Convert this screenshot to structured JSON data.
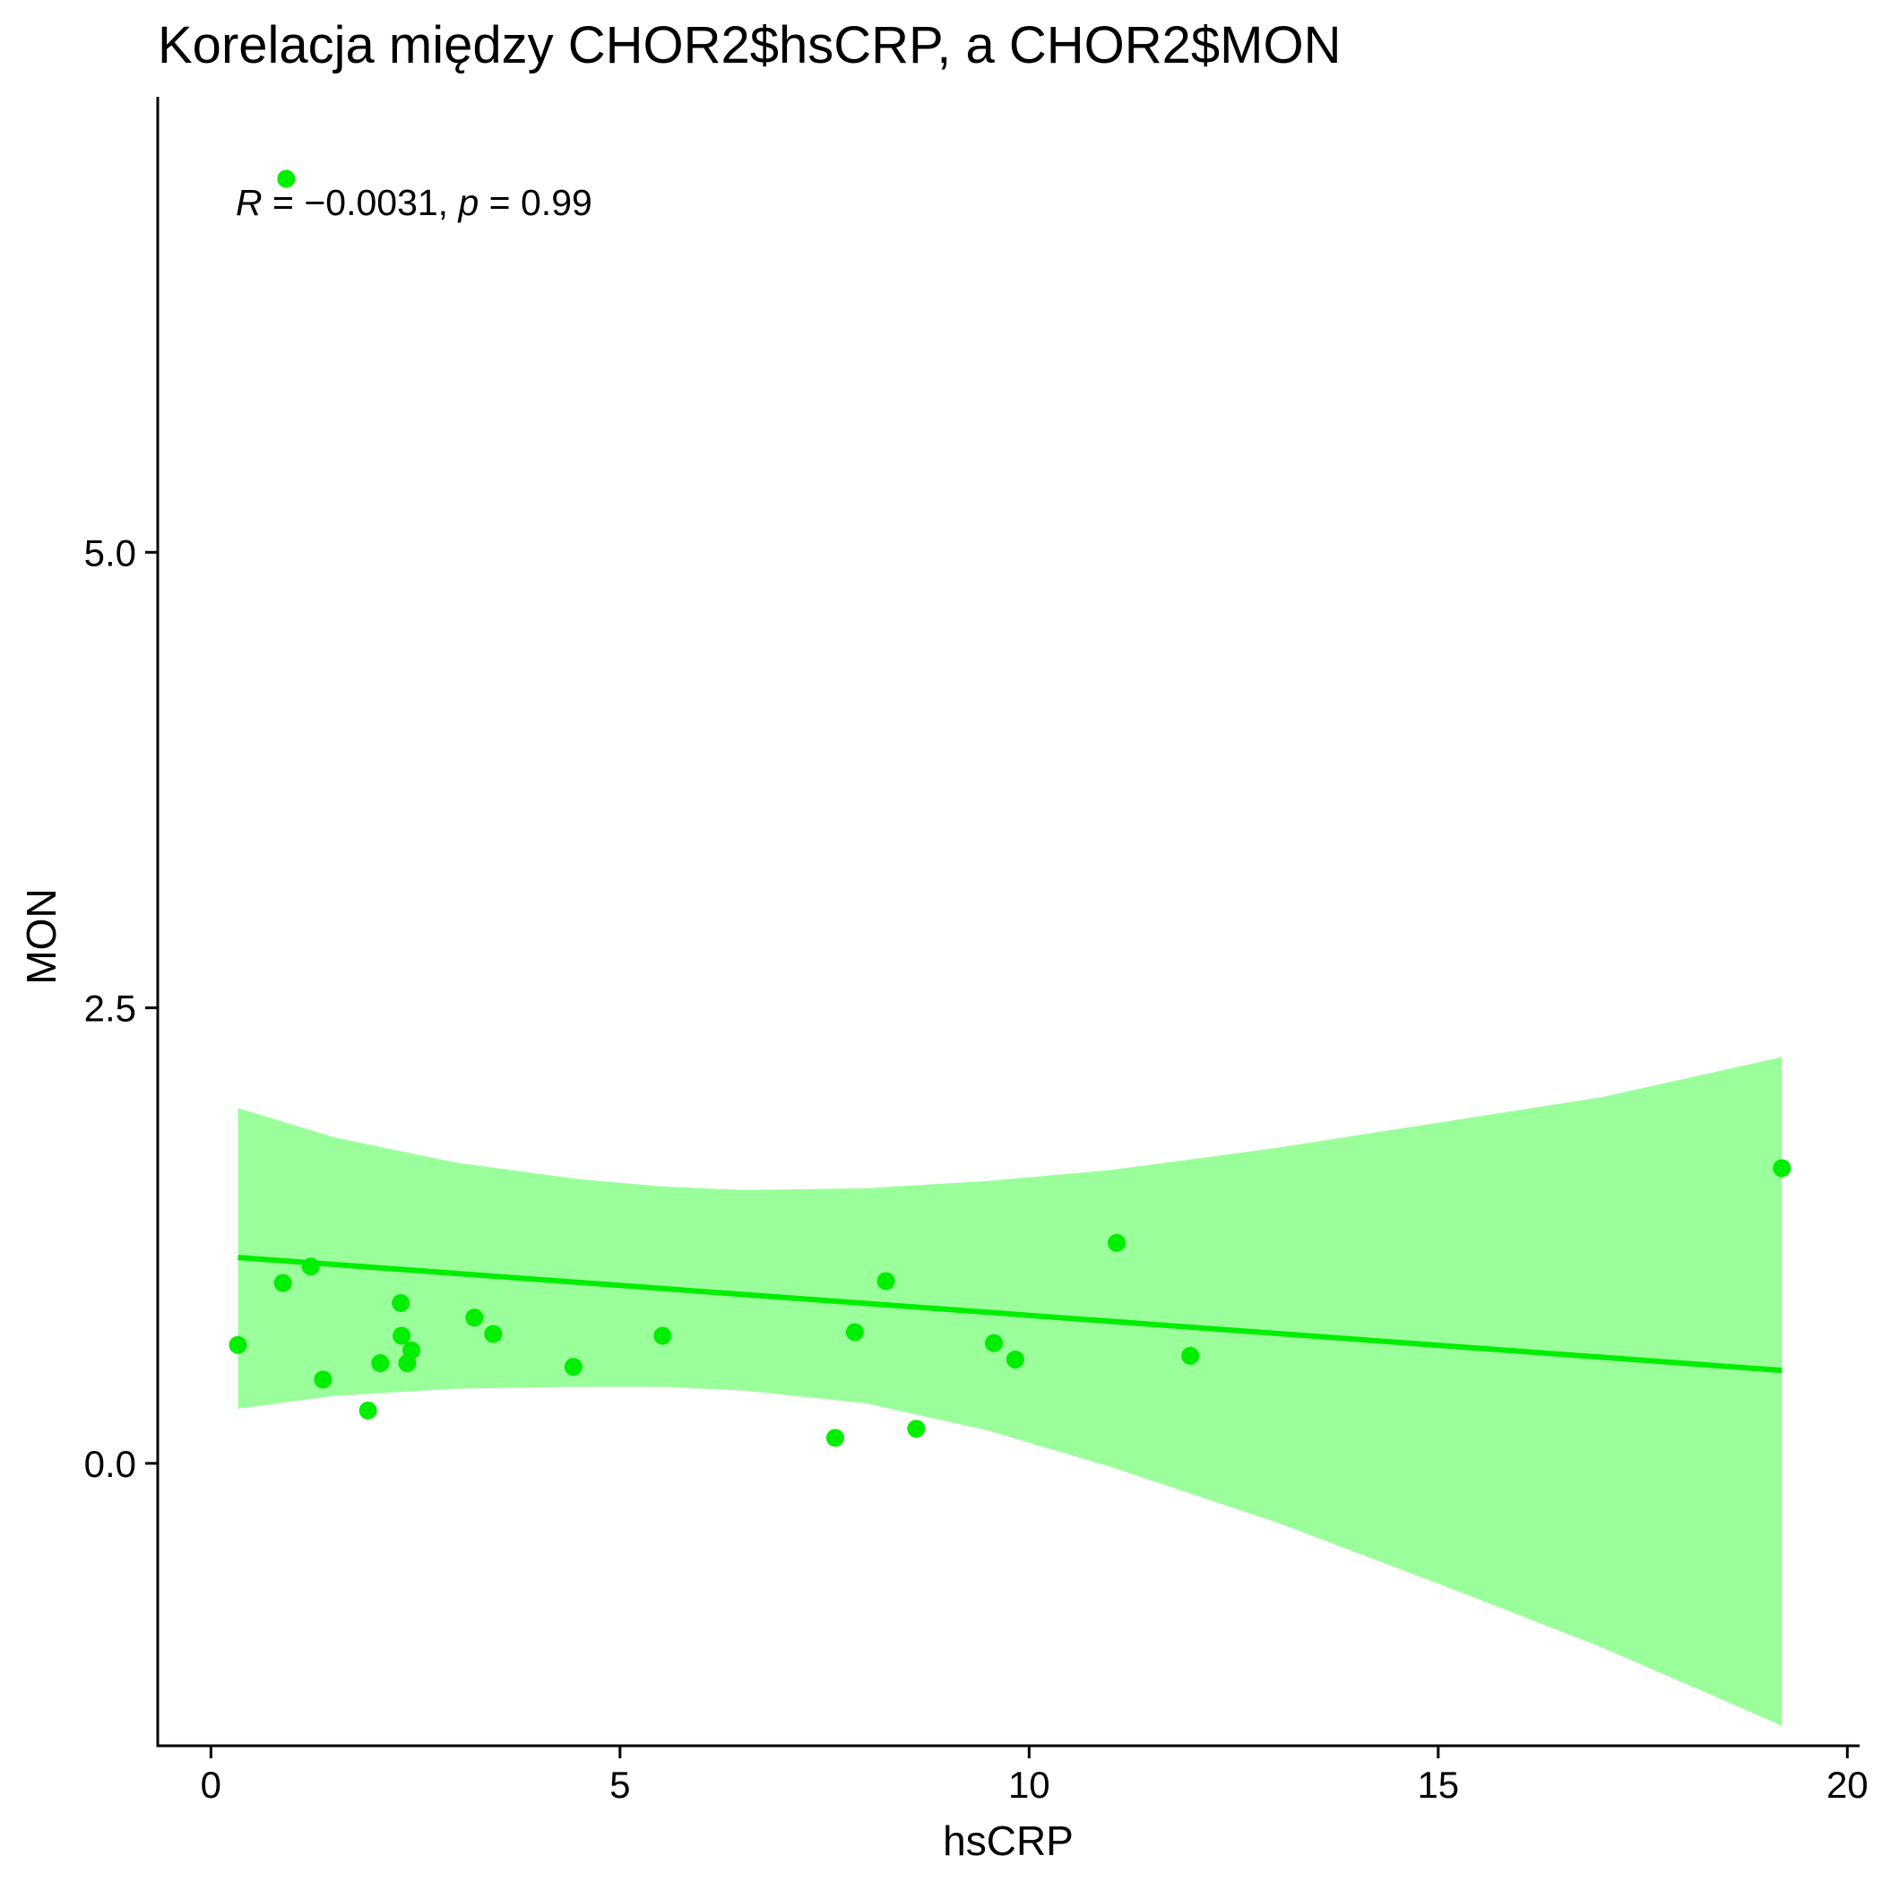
{
  "chart_data": {
    "type": "scatter",
    "title": "Korelacja między CHOR2$hsCRP, a CHOR2$MON",
    "xlabel": "hsCRP",
    "ylabel": "MON",
    "xlim": [
      -0.65,
      20.15
    ],
    "ylim": [
      -1.55,
      7.5
    ],
    "x_ticks": [
      0,
      5,
      10,
      15,
      20
    ],
    "x_tick_labels": [
      "0",
      "5",
      "10",
      "15",
      "20"
    ],
    "y_ticks": [
      0.0,
      2.5,
      5.0
    ],
    "y_tick_labels": [
      "0.0",
      "2.5",
      "5.0"
    ],
    "grid": false,
    "point_color": "#00EE00",
    "ribbon_color": "#9AFF9A",
    "points": [
      {
        "x": 0.33,
        "y": 0.65
      },
      {
        "x": 0.88,
        "y": 0.99
      },
      {
        "x": 0.92,
        "y": 7.05
      },
      {
        "x": 1.22,
        "y": 1.08
      },
      {
        "x": 1.37,
        "y": 0.46
      },
      {
        "x": 1.92,
        "y": 0.29
      },
      {
        "x": 2.07,
        "y": 0.55
      },
      {
        "x": 2.32,
        "y": 0.88
      },
      {
        "x": 2.33,
        "y": 0.7
      },
      {
        "x": 2.4,
        "y": 0.55
      },
      {
        "x": 2.45,
        "y": 0.62
      },
      {
        "x": 3.22,
        "y": 0.8
      },
      {
        "x": 3.45,
        "y": 0.71
      },
      {
        "x": 4.43,
        "y": 0.53
      },
      {
        "x": 5.52,
        "y": 0.7
      },
      {
        "x": 7.63,
        "y": 0.14
      },
      {
        "x": 7.87,
        "y": 0.72
      },
      {
        "x": 8.25,
        "y": 1.0
      },
      {
        "x": 8.62,
        "y": 0.19
      },
      {
        "x": 9.57,
        "y": 0.66
      },
      {
        "x": 9.83,
        "y": 0.57
      },
      {
        "x": 11.07,
        "y": 1.21
      },
      {
        "x": 11.97,
        "y": 0.59
      },
      {
        "x": 19.2,
        "y": 1.62
      }
    ],
    "fit_line": {
      "method": "lm",
      "x": [
        0.33,
        19.2
      ],
      "y": [
        1.13,
        0.51
      ]
    },
    "confidence_band": {
      "x": [
        0.33,
        1.5,
        3.0,
        4.5,
        5.5,
        6.5,
        8.0,
        9.5,
        11.0,
        13.0,
        15.0,
        17.0,
        19.2
      ],
      "upper": [
        1.95,
        1.79,
        1.65,
        1.56,
        1.52,
        1.5,
        1.51,
        1.55,
        1.61,
        1.73,
        1.87,
        2.01,
        2.23
      ],
      "lower": [
        0.3,
        0.37,
        0.41,
        0.42,
        0.42,
        0.4,
        0.33,
        0.18,
        -0.02,
        -0.32,
        -0.66,
        -1.01,
        -1.44
      ]
    },
    "annotation": {
      "r_symbol": "R",
      "r_text": " = −0.0031, ",
      "p_symbol": "p",
      "p_text": " = 0.99",
      "anchor": "top-left"
    }
  }
}
